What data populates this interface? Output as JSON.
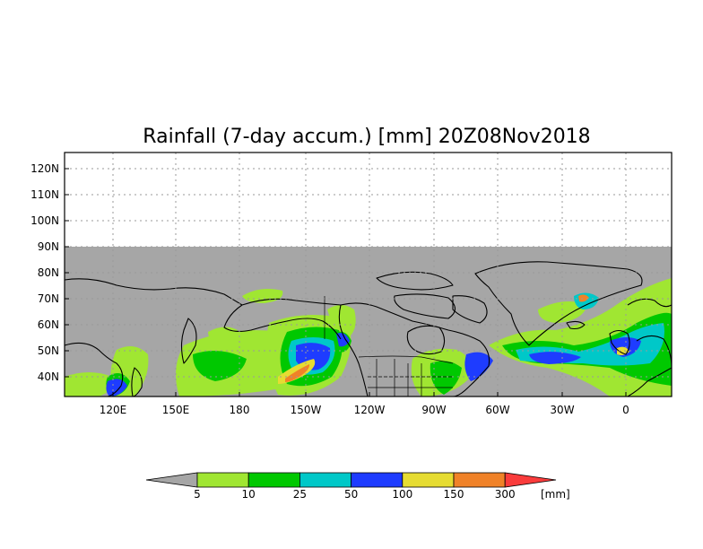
{
  "title": "Rainfall (7-day accum.) [mm] 20Z08Nov2018",
  "lat_labels": [
    "120N",
    "110N",
    "100N",
    "90N",
    "80N",
    "70N",
    "60N",
    "50N",
    "40N"
  ],
  "lon_labels": [
    "120E",
    "150E",
    "180",
    "150W",
    "120W",
    "90W",
    "60W",
    "30W",
    "0"
  ],
  "colorbar": {
    "colors": [
      "#a6a6a6",
      "#a0e632",
      "#00c800",
      "#00c8c8",
      "#1e3cff",
      "#e6dc32",
      "#f08228",
      "#fa3c3c"
    ],
    "labels": [
      "5",
      "10",
      "25",
      "50",
      "100",
      "150",
      "300"
    ],
    "unit": "[mm]"
  },
  "colors": {
    "no_data": "#a6a6a6"
  }
}
